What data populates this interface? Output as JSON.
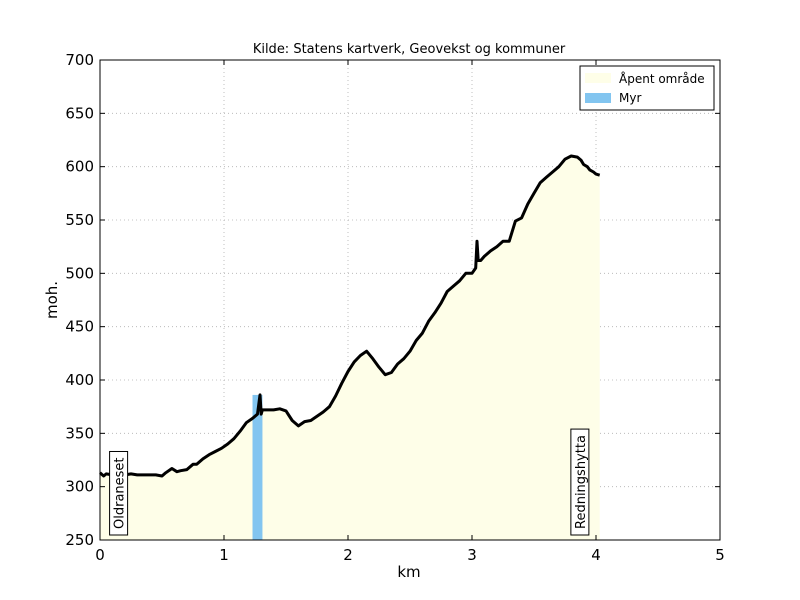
{
  "chart_data": {
    "type": "area",
    "title": "Kilde: Statens kartverk, Geovekst og kommuner",
    "xlabel": "km",
    "ylabel": "moh.",
    "xlim": [
      0,
      5
    ],
    "ylim": [
      250,
      700
    ],
    "xticks": [
      0,
      1,
      2,
      3,
      4,
      5
    ],
    "yticks": [
      250,
      300,
      350,
      400,
      450,
      500,
      550,
      600,
      650,
      700
    ],
    "grid": true,
    "legend_position": "top-right",
    "legend": [
      {
        "label": "Åpent område",
        "color": "#fefee8"
      },
      {
        "label": "Myr",
        "color": "#82c5f0"
      }
    ],
    "line_color": "#000000",
    "series": [
      {
        "x": [
          0.0,
          0.03,
          0.05,
          0.1,
          0.15,
          0.2,
          0.25,
          0.3,
          0.35,
          0.4,
          0.45,
          0.5,
          0.53,
          0.58,
          0.62,
          0.65,
          0.7,
          0.75,
          0.78,
          0.83,
          0.88,
          0.93,
          0.98,
          1.03,
          1.08,
          1.13,
          1.18,
          1.23,
          1.27,
          1.29,
          1.3,
          1.31,
          1.35,
          1.4,
          1.45,
          1.5,
          1.55,
          1.6,
          1.65,
          1.7,
          1.75,
          1.8,
          1.85,
          1.9,
          1.95,
          2.0,
          2.05,
          2.1,
          2.15,
          2.2,
          2.25,
          2.3,
          2.35,
          2.4,
          2.45,
          2.5,
          2.55,
          2.6,
          2.65,
          2.7,
          2.75,
          2.8,
          2.85,
          2.9,
          2.95,
          3.0,
          3.03,
          3.04,
          3.05,
          3.07,
          3.1,
          3.15,
          3.2,
          3.25,
          3.3,
          3.35,
          3.4,
          3.45,
          3.5,
          3.55,
          3.6,
          3.65,
          3.7,
          3.75,
          3.8,
          3.85,
          3.88,
          3.9,
          3.93,
          3.95,
          3.98,
          4.0,
          4.03
        ],
        "y": [
          313,
          310,
          312,
          311,
          310,
          311,
          312,
          311,
          311,
          311,
          311,
          310,
          313,
          317,
          314,
          315,
          316,
          321,
          321,
          326,
          330,
          333,
          336,
          340,
          345,
          352,
          360,
          364,
          368,
          386,
          368,
          372,
          372,
          372,
          373,
          371,
          362,
          357,
          361,
          362,
          366,
          370,
          375,
          385,
          397,
          408,
          417,
          423,
          427,
          420,
          412,
          405,
          407,
          415,
          420,
          427,
          437,
          444,
          455,
          463,
          472,
          483,
          488,
          493,
          500,
          500,
          505,
          530,
          512,
          512,
          516,
          521,
          525,
          530,
          530,
          549,
          552,
          565,
          575,
          585,
          590,
          595,
          600,
          607,
          610,
          609,
          606,
          602,
          600,
          597,
          595,
          593,
          592
        ]
      }
    ],
    "regions": [
      {
        "name": "Myr",
        "x_start": 1.23,
        "x_end": 1.31,
        "color": "#82c5f0"
      }
    ],
    "annotations": [
      {
        "text": "Oldraneset",
        "x": 0.15
      },
      {
        "text": "Redningshytta",
        "x": 3.87
      }
    ]
  }
}
